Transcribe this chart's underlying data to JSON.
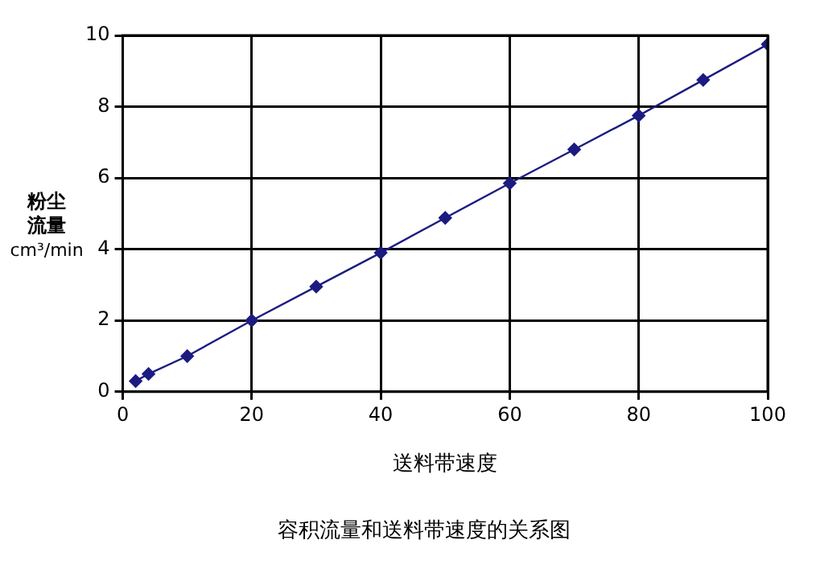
{
  "chart_data": {
    "type": "line",
    "title": "容积流量和送料带速度的关系图",
    "xlabel": "送料带速度",
    "ylabel": "粉尘流量 cm³/min",
    "x": [
      2,
      4,
      10,
      20,
      30,
      40,
      50,
      60,
      70,
      80,
      90,
      100
    ],
    "series": [
      {
        "color": "#1c1c80",
        "values": [
          0.3,
          0.5,
          1.0,
          2.0,
          2.95,
          3.9,
          4.88,
          5.85,
          6.8,
          7.75,
          8.75,
          9.75
        ]
      }
    ],
    "xlim": [
      0,
      100
    ],
    "xticks": [
      0,
      20,
      40,
      60,
      80,
      100
    ],
    "ylim": [
      0,
      10
    ],
    "yticks": [
      0,
      2,
      4,
      6,
      8,
      10
    ],
    "grid": true,
    "legend": false,
    "marker": "diamond",
    "line_style": "solid"
  }
}
